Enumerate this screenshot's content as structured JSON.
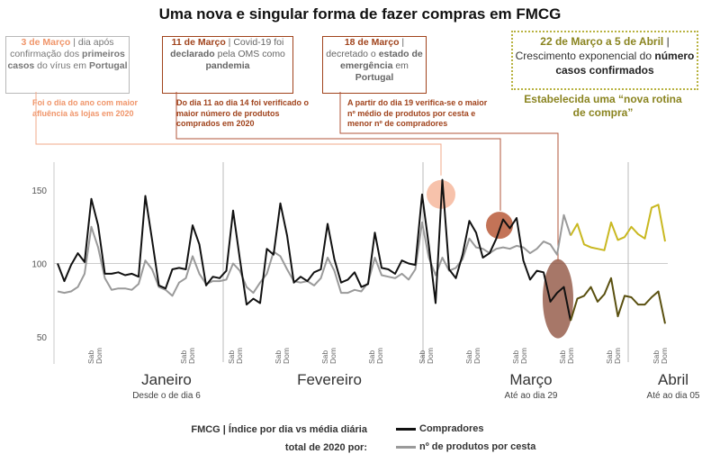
{
  "title": "Uma nova e singular forma de fazer compras em FMCG",
  "boxes": {
    "b1": {
      "hl": "3 de Março",
      "rest1": " | dia após confirmação dos ",
      "bold": "primeiros casos",
      "rest2": " do vírus em ",
      "bold2": "Portugal"
    },
    "b2": {
      "hl": "11 de Março",
      "rest1": " | Covid-19 foi ",
      "bold": "declarado",
      "rest2": " pela OMS como ",
      "bold2": "pandemia"
    },
    "b3": {
      "hl": "18 de Março",
      "rest1": " | decretado o ",
      "bold": "estado de emergência",
      "rest2": " em ",
      "bold2": "Portugal"
    },
    "b4": {
      "hl": "22 de Março a 5 de Abril",
      "rest1": " | Crescimento exponencial do ",
      "bold": "número casos confirmados"
    }
  },
  "notes": {
    "n1": "Foi o dia do ano com maior afluência às lojas em 2020",
    "n2": "Do dia 11 ao dia 14 foi verificado o maior número de produtos comprados em 2020",
    "n3": "A partir do dia 19 verifica-se o maior nº médio de produtos por cesta e menor nº de compradores",
    "n4": "Estabelecida uma “nova rotina de compra”"
  },
  "legend": {
    "title": "FMCG | Índice por dia vs média diária total de 2020 por:",
    "compradores": "Compradores",
    "produtos": "nº de produtos por cesta"
  },
  "colors": {
    "compradores": "#111111",
    "produtos": "#9a9a9a",
    "pos_compradores": "#5a5010",
    "pos_produtos": "#c9b820",
    "orange_light": "#f6b79c",
    "orange_dark": "#b85a3a",
    "brown": "#8a4a36"
  },
  "chart_data": {
    "type": "line",
    "ylim": [
      50,
      160
    ],
    "yticks": [
      50,
      100,
      150
    ],
    "reference_line": 100,
    "months": [
      {
        "name": "Janeiro",
        "sub": "Desde o de dia 6"
      },
      {
        "name": "Fevereiro",
        "sub": ""
      },
      {
        "name": "Março",
        "sub": "Até ao dia 29"
      },
      {
        "name": "Abril",
        "sub": "Até ao dia 05"
      }
    ],
    "weekend_label": [
      "Sab",
      "Dom"
    ],
    "series": [
      {
        "name": "Compradores",
        "values": [
          100,
          88,
          99,
          107,
          101,
          144,
          126,
          93,
          93,
          94,
          92,
          93,
          91,
          146,
          116,
          85,
          83,
          96,
          97,
          96,
          126,
          113,
          85,
          91,
          90,
          95,
          136,
          103,
          72,
          76,
          73,
          110,
          106,
          141,
          119,
          87,
          91,
          88,
          94,
          96,
          127,
          103,
          87,
          89,
          94,
          84,
          86,
          121,
          97,
          96,
          93,
          102,
          100,
          99,
          147,
          112,
          73,
          157,
          96,
          90,
          106,
          129,
          121,
          104,
          107,
          117,
          130,
          124,
          131,
          102,
          89,
          95,
          94,
          74,
          80,
          84,
          61,
          76,
          78,
          84,
          74,
          79,
          90,
          64,
          78,
          77,
          72,
          72,
          77,
          81,
          59
        ],
        "post_start": 76
      },
      {
        "name": "nº de produtos por cesta",
        "values": [
          81,
          80,
          81,
          84,
          93,
          125,
          111,
          90,
          82,
          83,
          83,
          82,
          86,
          102,
          96,
          84,
          82,
          78,
          87,
          90,
          105,
          93,
          86,
          88,
          88,
          89,
          100,
          95,
          84,
          80,
          87,
          93,
          108,
          105,
          96,
          88,
          87,
          88,
          85,
          90,
          104,
          95,
          80,
          80,
          82,
          81,
          87,
          104,
          92,
          91,
          90,
          93,
          89,
          96,
          128,
          104,
          92,
          104,
          95,
          97,
          103,
          117,
          111,
          110,
          107,
          110,
          111,
          110,
          112,
          111,
          107,
          110,
          115,
          113,
          106,
          133,
          119,
          127,
          113,
          111,
          110,
          109,
          128,
          116,
          118,
          125,
          120,
          117,
          138,
          140,
          115
        ],
        "post_start": 76
      }
    ]
  }
}
